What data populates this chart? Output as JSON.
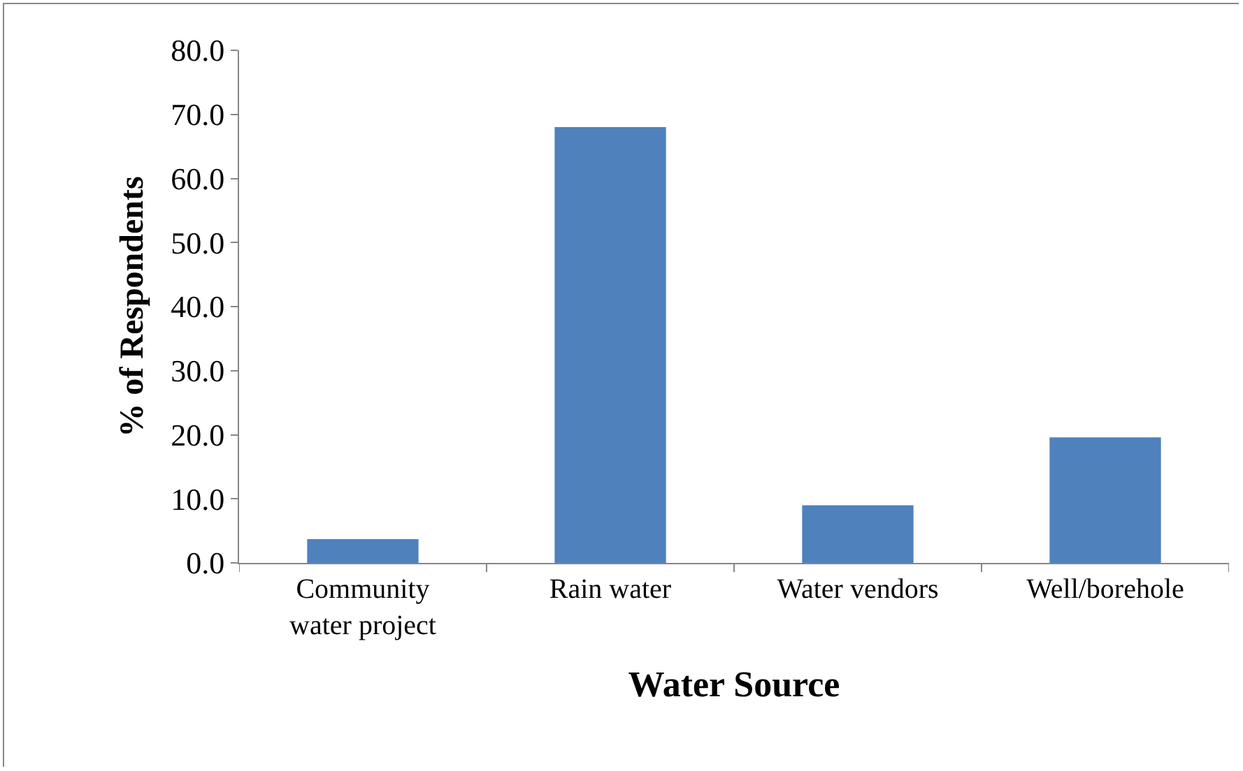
{
  "chart_data": {
    "type": "bar",
    "xlabel": "Water Source",
    "ylabel": "% of Respondents",
    "categories": [
      "Community water project",
      "Rain water",
      "Water vendors",
      "Well/borehole"
    ],
    "values": [
      3.7,
      68.0,
      9.0,
      19.6
    ],
    "color": "#4f81bd",
    "grid": false,
    "ylim": [
      0,
      80
    ],
    "yticks": [
      {
        "value": 0,
        "label": "0.0"
      },
      {
        "value": 10,
        "label": "10.0"
      },
      {
        "value": 20,
        "label": "20.0"
      },
      {
        "value": 30,
        "label": "30.0"
      },
      {
        "value": 40,
        "label": "40.0"
      },
      {
        "value": 50,
        "label": "50.0"
      },
      {
        "value": 60,
        "label": "60.0"
      },
      {
        "value": 70,
        "label": "70.0"
      },
      {
        "value": 80,
        "label": "80.0"
      }
    ]
  }
}
